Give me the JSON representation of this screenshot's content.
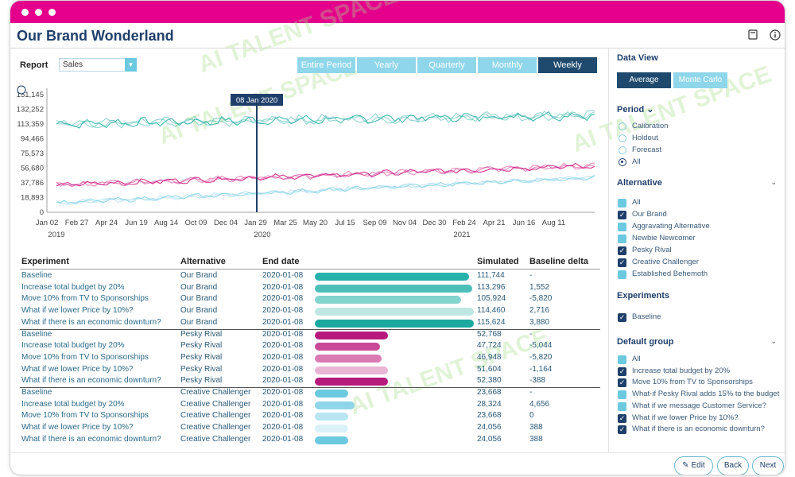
{
  "app": {
    "title": "Our Brand Wonderland"
  },
  "watermark": "AI TALENT SPACE",
  "report": {
    "label": "Report",
    "value": "Sales"
  },
  "periods": [
    {
      "label": "Entire Period",
      "active": false
    },
    {
      "label": "Yearly",
      "active": false
    },
    {
      "label": "Quarterly",
      "active": false
    },
    {
      "label": "Monthly",
      "active": false
    },
    {
      "label": "Weekly",
      "active": true
    }
  ],
  "chart_data": {
    "type": "line",
    "y_ticks": [
      "151,145",
      "132,252",
      "113,359",
      "94,466",
      "75,573",
      "56,680",
      "37,786",
      "18,893",
      "0"
    ],
    "ylim": [
      0,
      151145
    ],
    "x_ticks": [
      "Jan 02",
      "Feb 27",
      "Apr 24",
      "Jun 19",
      "Aug 14",
      "Oct 09",
      "Dec 04",
      "Jan 29",
      "Mar 25",
      "May 20",
      "Jul 15",
      "Sep 09",
      "Nov 04",
      "Dec 30",
      "Feb 24",
      "Apr 21",
      "Jun 16",
      "Aug 11"
    ],
    "x_years": [
      "2019",
      "2020",
      "2021"
    ],
    "marker_label": "08 Jan 2020",
    "series": [
      {
        "color": "#3ab5ad",
        "start": 113359,
        "end": 125000,
        "noise": 7000
      },
      {
        "color": "#d02c8a",
        "start": 35000,
        "end": 60000,
        "noise": 4500
      },
      {
        "color": "#8fd6ea",
        "start": 12000,
        "end": 45000,
        "noise": 3500
      }
    ]
  },
  "table": {
    "headers": {
      "experiment": "Experiment",
      "alternative": "Alternative",
      "end_date": "End date",
      "simulated": "Simulated",
      "delta": "Baseline delta"
    },
    "rows": [
      {
        "experiment": "Baseline",
        "alternative": "Our Brand",
        "end_date": "2020-01-08",
        "simulated": "111,744",
        "delta": "-",
        "bar": 0.97,
        "color": "#26b1ab"
      },
      {
        "experiment": "Increase total budget by 20%",
        "alternative": "Our Brand",
        "end_date": "2020-01-08",
        "simulated": "113,296",
        "delta": "1,552",
        "bar": 0.99,
        "color": "#4cc0b8"
      },
      {
        "experiment": "Move 10% from TV to Sponsorships",
        "alternative": "Our Brand",
        "end_date": "2020-01-08",
        "simulated": "105,924",
        "delta": "-5,820",
        "bar": 0.92,
        "color": "#82d4cd"
      },
      {
        "experiment": "What if we lower Price by 10%?",
        "alternative": "Our Brand",
        "end_date": "2020-01-08",
        "simulated": "114,460",
        "delta": "2,716",
        "bar": 1.0,
        "color": "#bfe8e4"
      },
      {
        "experiment": "What if there is an economic downturn?",
        "alternative": "Our Brand",
        "end_date": "2020-01-08",
        "simulated": "115,624",
        "delta": "3,880",
        "bar": 1.0,
        "color": "#1aa89f"
      },
      {
        "experiment": "Baseline",
        "alternative": "Pesky Rival",
        "end_date": "2020-01-08",
        "simulated": "52,768",
        "delta": "-",
        "bar": 0.46,
        "color": "#b51a7c"
      },
      {
        "experiment": "Increase total budget by 20%",
        "alternative": "Pesky Rival",
        "end_date": "2020-01-08",
        "simulated": "47,724",
        "delta": "-5,044",
        "bar": 0.41,
        "color": "#c84a96"
      },
      {
        "experiment": "Move 10% from TV to Sponsorships",
        "alternative": "Pesky Rival",
        "end_date": "2020-01-08",
        "simulated": "46,948",
        "delta": "-5,820",
        "bar": 0.42,
        "color": "#d97ab3"
      },
      {
        "experiment": "What if we lower Price by 10%?",
        "alternative": "Pesky Rival",
        "end_date": "2020-01-08",
        "simulated": "51,604",
        "delta": "-1,164",
        "bar": 0.46,
        "color": "#e9b5d4"
      },
      {
        "experiment": "What if there is an economic downturn?",
        "alternative": "Pesky Rival",
        "end_date": "2020-01-08",
        "simulated": "52,380",
        "delta": "-388",
        "bar": 0.46,
        "color": "#b51a7c"
      },
      {
        "experiment": "Baseline",
        "alternative": "Creative Challenger",
        "end_date": "2020-01-08",
        "simulated": "23,668",
        "delta": "-",
        "bar": 0.21,
        "color": "#6bc9e0"
      },
      {
        "experiment": "Increase total budget by 20%",
        "alternative": "Creative Challenger",
        "end_date": "2020-01-08",
        "simulated": "28,324",
        "delta": "4,656",
        "bar": 0.25,
        "color": "#8fd6ea"
      },
      {
        "experiment": "Move 10% from TV to Sponsorships",
        "alternative": "Creative Challenger",
        "end_date": "2020-01-08",
        "simulated": "23,668",
        "delta": "0",
        "bar": 0.21,
        "color": "#b9e5f1"
      },
      {
        "experiment": "What if we lower Price by 10%?",
        "alternative": "Creative Challenger",
        "end_date": "2020-01-08",
        "simulated": "24,056",
        "delta": "388",
        "bar": 0.21,
        "color": "#daf1f8"
      },
      {
        "experiment": "What if there is an economic downturn?",
        "alternative": "Creative Challenger",
        "end_date": "2020-01-08",
        "simulated": "24,056",
        "delta": "388",
        "bar": 0.21,
        "color": "#6bc9e0"
      }
    ]
  },
  "panel": {
    "data_view": {
      "title": "Data View",
      "average": "Average",
      "monte_carlo": "Monte Carlo"
    },
    "period": {
      "title": "Period",
      "options": [
        {
          "label": "Calibration",
          "checked": false
        },
        {
          "label": "Holdout",
          "checked": false
        },
        {
          "label": "Forecast",
          "checked": false
        },
        {
          "label": "All",
          "checked": true
        }
      ]
    },
    "alternative": {
      "title": "Alternative",
      "options": [
        {
          "label": "All",
          "checked": false
        },
        {
          "label": "Our Brand",
          "checked": true
        },
        {
          "label": "Aggravating Alternative",
          "checked": false
        },
        {
          "label": "Newbie Newcomer",
          "checked": false
        },
        {
          "label": "Pesky Rival",
          "checked": true
        },
        {
          "label": "Creative Challenger",
          "checked": true
        },
        {
          "label": "Established Behemoth",
          "checked": false
        }
      ]
    },
    "experiments": {
      "title": "Experiments",
      "options": [
        {
          "label": "Baseline",
          "checked": true
        }
      ]
    },
    "default_group": {
      "title": "Default group",
      "options": [
        {
          "label": "All",
          "checked": false
        },
        {
          "label": "Increase total budget by 20%",
          "checked": true
        },
        {
          "label": "Move 10% from TV to Sponsorships",
          "checked": true
        },
        {
          "label": "What-if Pesky Rival adds 15% to the budget",
          "checked": false
        },
        {
          "label": "What if we message Customer Service?",
          "checked": false
        },
        {
          "label": "What if we lower Price by 10%?",
          "checked": true
        },
        {
          "label": "What if there is an economic downturn?",
          "checked": true
        }
      ]
    }
  },
  "footer": {
    "edit": "Edit",
    "back": "Back",
    "next": "Next"
  }
}
